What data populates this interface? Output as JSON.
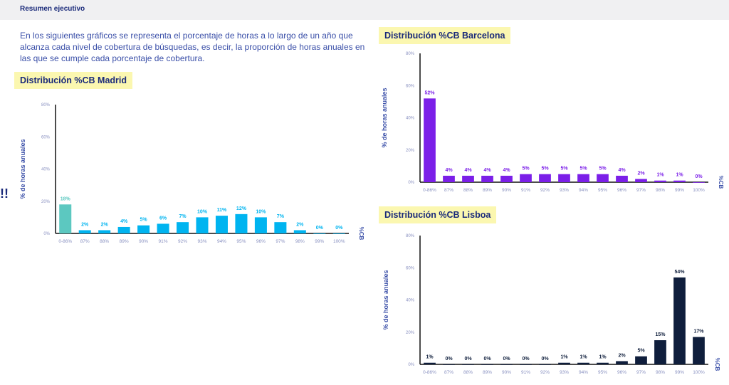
{
  "header": {
    "title": "Resumen ejecutivo"
  },
  "intro": "En los siguientes gráficos se representa el porcentaje de horas a lo largo de un año que alcanza cada nivel de cobertura de búsquedas, es decir, la proporción de horas anuales en las que se cumple cada porcentaje de cobertura.",
  "side_mark": "!!",
  "chart_data": [
    {
      "type": "bar",
      "title": "Distribución %CB Madrid",
      "ylabel": "% de horas anuales",
      "xlabel": "%CB",
      "ylim": [
        0,
        80
      ],
      "yticks": [
        "0%",
        "20%",
        "40%",
        "60%",
        "80%"
      ],
      "categories": [
        "0-86%",
        "87%",
        "88%",
        "89%",
        "90%",
        "91%",
        "92%",
        "93%",
        "94%",
        "95%",
        "96%",
        "97%",
        "98%",
        "99%",
        "100%"
      ],
      "values": [
        18,
        2,
        2,
        4,
        5,
        6,
        7,
        10,
        11,
        12,
        10,
        7,
        2,
        0,
        0
      ],
      "color": "#00b4f0",
      "first_color": "#5cc8c0"
    },
    {
      "type": "bar",
      "title": "Distribución %CB Barcelona",
      "ylabel": "% de horas anuales",
      "xlabel": "%CB",
      "ylim": [
        0,
        80
      ],
      "yticks": [
        "0%",
        "20%",
        "40%",
        "60%",
        "80%"
      ],
      "categories": [
        "0-86%",
        "87%",
        "88%",
        "89%",
        "90%",
        "91%",
        "92%",
        "93%",
        "94%",
        "95%",
        "96%",
        "97%",
        "98%",
        "99%",
        "100%"
      ],
      "values": [
        52,
        4,
        4,
        4,
        4,
        5,
        5,
        5,
        5,
        5,
        4,
        2,
        1,
        1,
        0
      ],
      "color": "#7b1fe8"
    },
    {
      "type": "bar",
      "title": "Distribución %CB Lisboa",
      "ylabel": "% de horas anuales",
      "xlabel": "%CB",
      "ylim": [
        0,
        80
      ],
      "yticks": [
        "0%",
        "20%",
        "40%",
        "60%",
        "80%"
      ],
      "categories": [
        "0-86%",
        "87%",
        "88%",
        "89%",
        "90%",
        "91%",
        "92%",
        "93%",
        "94%",
        "95%",
        "96%",
        "97%",
        "98%",
        "99%",
        "100%"
      ],
      "values": [
        1,
        0,
        0,
        0,
        0,
        0,
        0,
        1,
        1,
        1,
        2,
        5,
        15,
        54,
        17
      ],
      "color": "#0f1e3c"
    }
  ]
}
